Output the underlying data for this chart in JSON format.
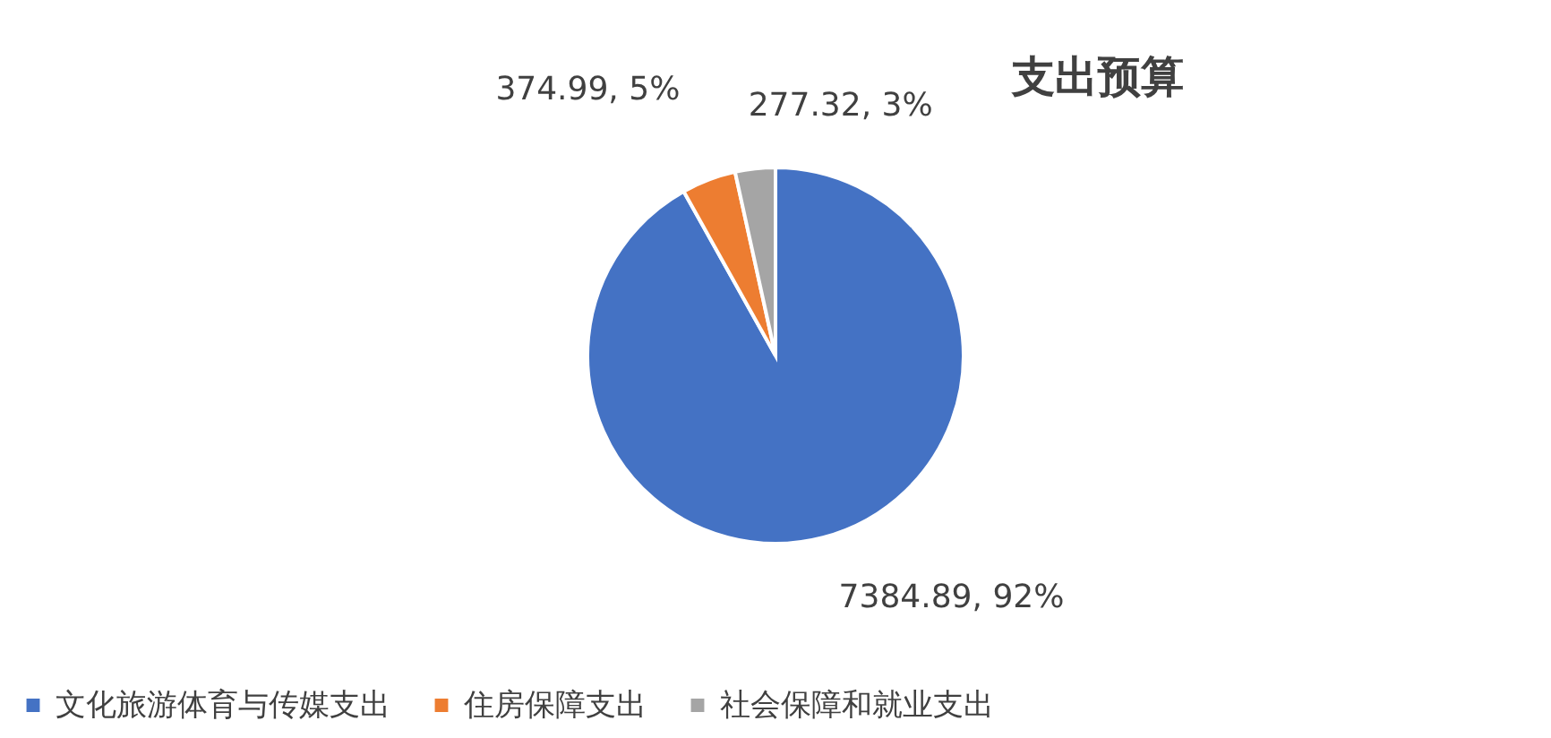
{
  "chart_data": {
    "type": "pie",
    "title": "支出预算",
    "categories": [
      "文化旅游体育与传媒支出",
      "住房保障支出",
      "社会保障和就业支出"
    ],
    "values": [
      7384.89,
      374.99,
      277.32
    ],
    "colors": [
      "#4472c4",
      "#ed7d31",
      "#a5a5a5"
    ],
    "value_labels": [
      "7384.89, 92%",
      "374.99, 5%",
      "277.32, 3%"
    ],
    "legend": "bottom"
  }
}
